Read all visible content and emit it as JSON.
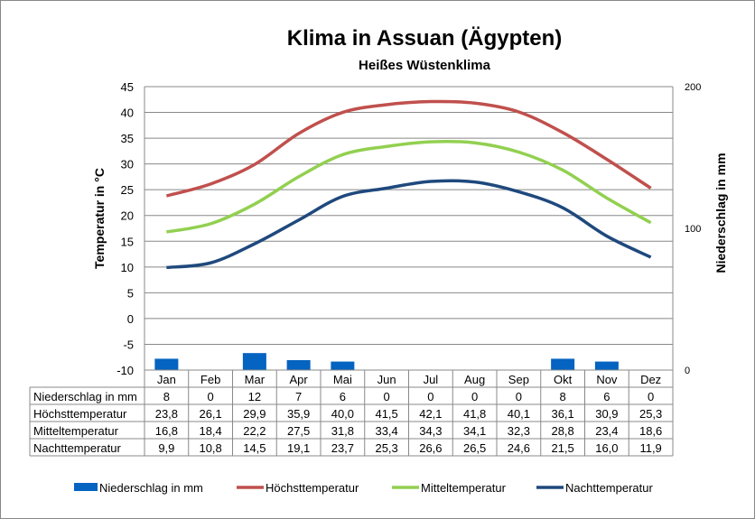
{
  "chart_data": {
    "type": "line",
    "title": "Klima in Assuan (Ägypten)",
    "subtitle": "Heißes Wüstenklima",
    "ylabel": "Temperatur in °C",
    "y2label": "Niederschlag in mm",
    "ylim": [
      -10,
      45
    ],
    "yticks": [
      "45",
      "40",
      "35",
      "30",
      "25",
      "20",
      "15",
      "10",
      "5",
      "0",
      "-5",
      "-10"
    ],
    "y2lim": [
      0,
      200
    ],
    "y2ticks": [
      "200",
      "100",
      "0"
    ],
    "categories": [
      "Jan",
      "Feb",
      "Mar",
      "Apr",
      "Mai",
      "Jun",
      "Jul",
      "Aug",
      "Sep",
      "Okt",
      "Nov",
      "Dez"
    ],
    "legend_position": "bottom",
    "series": [
      {
        "name": "Niederschlag in mm",
        "type": "bar",
        "axis": "right",
        "color": "#0563C1",
        "values": [
          8,
          0,
          12,
          7,
          6,
          0,
          0,
          0,
          0,
          8,
          6,
          0
        ],
        "display": [
          "8",
          "0",
          "12",
          "7",
          "6",
          "0",
          "0",
          "0",
          "0",
          "8",
          "6",
          "0"
        ]
      },
      {
        "name": "Höchsttemperatur",
        "type": "line",
        "color": "#C0504D",
        "values": [
          23.8,
          26.1,
          29.9,
          35.9,
          40.0,
          41.5,
          42.1,
          41.8,
          40.1,
          36.1,
          30.9,
          25.3
        ],
        "display": [
          "23,8",
          "26,1",
          "29,9",
          "35,9",
          "40,0",
          "41,5",
          "42,1",
          "41,8",
          "40,1",
          "36,1",
          "30,9",
          "25,3"
        ]
      },
      {
        "name": "Mitteltemperatur",
        "type": "line",
        "color": "#92D050",
        "values": [
          16.8,
          18.4,
          22.2,
          27.5,
          31.8,
          33.4,
          34.3,
          34.1,
          32.3,
          28.8,
          23.4,
          18.6
        ],
        "display": [
          "16,8",
          "18,4",
          "22,2",
          "27,5",
          "31,8",
          "33,4",
          "34,3",
          "34,1",
          "32,3",
          "28,8",
          "23,4",
          "18,6"
        ]
      },
      {
        "name": "Nachttemperatur",
        "type": "line",
        "color": "#1F497D",
        "values": [
          9.9,
          10.8,
          14.5,
          19.1,
          23.7,
          25.3,
          26.6,
          26.5,
          24.6,
          21.5,
          16.0,
          11.9
        ],
        "display": [
          "9,9",
          "10,8",
          "14,5",
          "19,1",
          "23,7",
          "25,3",
          "26,6",
          "26,5",
          "24,6",
          "21,5",
          "16,0",
          "11,9"
        ]
      }
    ]
  }
}
